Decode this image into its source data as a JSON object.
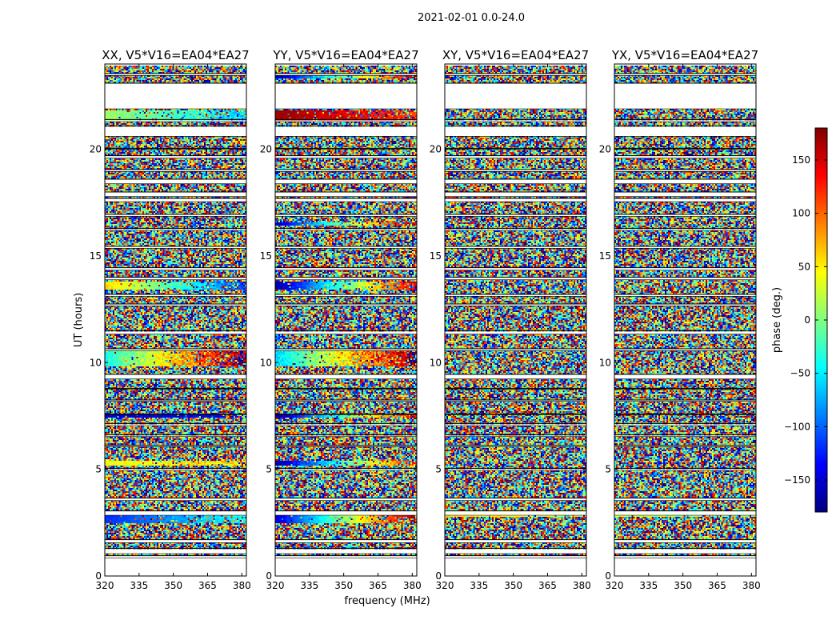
{
  "chart_data": {
    "type": "heatmap",
    "suptitle": "2021-02-01 0.0-24.0",
    "xlabel": "frequency (MHz)",
    "ylabel": "UT (hours)",
    "colorbar_label": "phase (deg.)",
    "colorbar_ticks": [
      150,
      100,
      50,
      0,
      -50,
      -100,
      -150
    ],
    "colorbar_tick_labels": [
      "150",
      "100",
      "50",
      "0",
      "−50",
      "−100",
      "−150"
    ],
    "colorbar_range": [
      -180,
      180
    ],
    "colormap": "jet",
    "xlim": [
      320,
      382
    ],
    "ylim": [
      0,
      24
    ],
    "xticks": [
      320,
      335,
      350,
      365,
      380
    ],
    "yticks": [
      0,
      5,
      10,
      15,
      20
    ],
    "flagged_time_ranges_hours": [
      [
        0.85,
        0.95
      ],
      [
        1.05,
        1.3
      ],
      [
        1.55,
        1.7
      ],
      [
        2.85,
        3.05
      ],
      [
        3.55,
        3.65
      ],
      [
        4.95,
        5.05
      ],
      [
        6.05,
        6.12
      ],
      [
        6.55,
        6.62
      ],
      [
        7.05,
        7.15
      ],
      [
        7.55,
        7.6
      ],
      [
        8.2,
        8.25
      ],
      [
        8.75,
        8.8
      ],
      [
        9.25,
        9.45
      ],
      [
        10.55,
        10.65
      ],
      [
        11.35,
        11.5
      ],
      [
        12.65,
        12.75
      ],
      [
        13.1,
        13.2
      ],
      [
        13.9,
        14.0
      ],
      [
        14.35,
        14.45
      ],
      [
        15.35,
        15.45
      ],
      [
        16.2,
        16.3
      ],
      [
        16.85,
        16.95
      ],
      [
        17.55,
        17.7
      ],
      [
        17.8,
        18.0
      ],
      [
        18.4,
        18.6
      ],
      [
        18.95,
        19.05
      ],
      [
        19.6,
        19.7
      ],
      [
        20.0,
        20.05
      ],
      [
        20.6,
        21.1
      ],
      [
        21.3,
        21.4
      ],
      [
        21.9,
        23.1
      ],
      [
        23.45,
        23.55
      ]
    ],
    "series": [
      {
        "name": "XX, V5*V16=EA04*EA27"
      },
      {
        "name": "YY, V5*V16=EA04*EA27"
      },
      {
        "name": "XY, V5*V16=EA04*EA27"
      },
      {
        "name": "YX, V5*V16=EA04*EA27"
      }
    ]
  }
}
